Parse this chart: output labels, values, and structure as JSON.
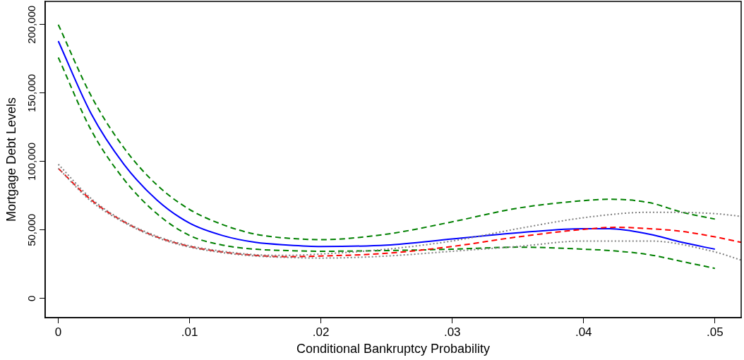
{
  "chart_data": {
    "type": "line",
    "xlabel": "Conditional Bankruptcy Probability",
    "ylabel": "Mortgage Debt Levels",
    "xlim": [
      -0.001,
      0.052
    ],
    "xticks": [
      {
        "value": 0,
        "label": "0"
      },
      {
        "value": 0.01,
        "label": ".01"
      },
      {
        "value": 0.02,
        "label": ".02"
      },
      {
        "value": 0.03,
        "label": ".03"
      },
      {
        "value": 0.04,
        "label": ".04"
      },
      {
        "value": 0.05,
        "label": ".05"
      }
    ],
    "ylim": [
      -14000,
      217000
    ],
    "yticks": [
      {
        "value": 0,
        "label": "0"
      },
      {
        "value": 50000,
        "label": "50,000"
      },
      {
        "value": 100000,
        "label": "100,000"
      },
      {
        "value": 150000,
        "label": "150,000"
      },
      {
        "value": 200000,
        "label": "200,000"
      }
    ],
    "grid": false,
    "legend": false,
    "marker": "none",
    "series": [
      {
        "color": "#0000ff",
        "line_style": "solid",
        "x": [
          0,
          0.0025,
          0.005,
          0.0075,
          0.01,
          0.0125,
          0.015,
          0.0175,
          0.02,
          0.025,
          0.03,
          0.035,
          0.04,
          0.042,
          0.045,
          0.0475,
          0.05
        ],
        "values": [
          188000,
          135000,
          98000,
          72000,
          55000,
          46000,
          41000,
          39000,
          38000,
          39000,
          43500,
          48000,
          51000,
          51000,
          47000,
          41000,
          36000
        ]
      },
      {
        "color": "#008000",
        "line_style": "dashed",
        "x": [
          0,
          0.0025,
          0.005,
          0.0075,
          0.01,
          0.0125,
          0.015,
          0.0175,
          0.02,
          0.025,
          0.03,
          0.035,
          0.04,
          0.042,
          0.045,
          0.0475,
          0.05
        ],
        "values": [
          200000,
          148000,
          110000,
          83000,
          65000,
          54000,
          47000,
          44000,
          43000,
          47000,
          56000,
          66000,
          71500,
          72500,
          70000,
          63000,
          58000
        ]
      },
      {
        "color": "#008000",
        "line_style": "dashed",
        "x": [
          0,
          0.0025,
          0.005,
          0.0075,
          0.01,
          0.0125,
          0.015,
          0.0175,
          0.02,
          0.025,
          0.03,
          0.035,
          0.04,
          0.042,
          0.045,
          0.0475,
          0.05
        ],
        "values": [
          176000,
          123000,
          87000,
          62000,
          46000,
          39000,
          36000,
          35000,
          34500,
          35000,
          36000,
          37500,
          36000,
          35000,
          32000,
          27000,
          22000
        ]
      },
      {
        "color": "#ff0000",
        "line_style": "dashed",
        "x": [
          0,
          0.0025,
          0.005,
          0.0075,
          0.01,
          0.0125,
          0.015,
          0.0175,
          0.02,
          0.025,
          0.03,
          0.035,
          0.04,
          0.0425,
          0.045,
          0.0475,
          0.05,
          0.052
        ],
        "values": [
          95000,
          72000,
          56000,
          45000,
          38000,
          34000,
          31500,
          30500,
          31000,
          33000,
          38000,
          45000,
          50500,
          52000,
          51000,
          49000,
          45000,
          41000
        ]
      },
      {
        "color": "#808080",
        "line_style": "dotted",
        "x": [
          0,
          0.0025,
          0.005,
          0.0075,
          0.01,
          0.0125,
          0.015,
          0.0175,
          0.02,
          0.025,
          0.03,
          0.035,
          0.04,
          0.045,
          0.05,
          0.052
        ],
        "values": [
          98000,
          73000,
          56500,
          45500,
          38500,
          34500,
          32000,
          31500,
          32500,
          36000,
          42000,
          51000,
          59000,
          63000,
          62000,
          60000
        ]
      },
      {
        "color": "#808080",
        "line_style": "dotted",
        "x": [
          0,
          0.0025,
          0.005,
          0.0075,
          0.01,
          0.0125,
          0.015,
          0.0175,
          0.02,
          0.025,
          0.03,
          0.035,
          0.04,
          0.045,
          0.05,
          0.052
        ],
        "values": [
          95000,
          71000,
          55500,
          44500,
          37500,
          33500,
          31000,
          30000,
          29500,
          31000,
          34500,
          38000,
          42000,
          42000,
          34000,
          28000
        ]
      }
    ]
  }
}
